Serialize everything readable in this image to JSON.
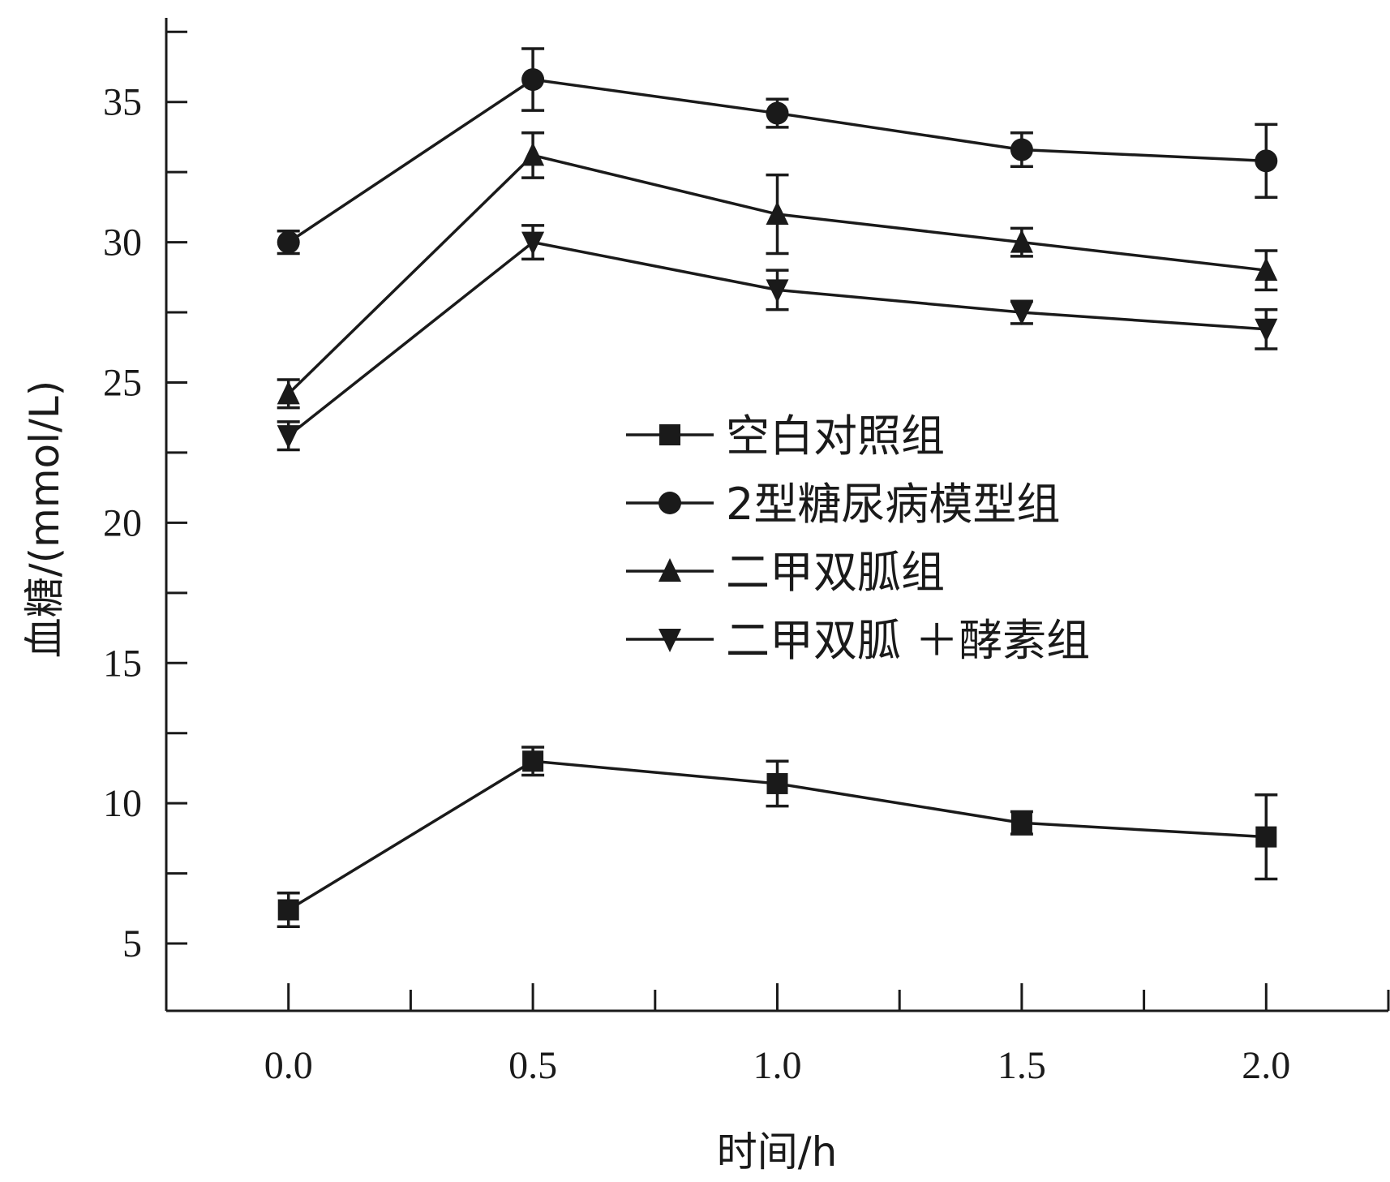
{
  "chart_data": {
    "type": "line",
    "title": "",
    "xlabel": "时间/h",
    "ylabel": "血糖/(mmol/L)",
    "x": [
      0.0,
      0.5,
      1.0,
      1.5,
      2.0
    ],
    "x_tick_labels": [
      "0.0",
      "0.5",
      "1.0",
      "1.5",
      "2.0"
    ],
    "y_ticks": [
      5,
      10,
      15,
      20,
      25,
      30,
      35
    ],
    "y_tick_labels": [
      "5",
      "10",
      "15",
      "20",
      "25",
      "30",
      "35"
    ],
    "xlim": [
      -0.25,
      2.25
    ],
    "ylim": [
      2.6,
      38.0
    ],
    "legend_position": "center-right",
    "series": [
      {
        "name": "空白对照组",
        "marker": "square",
        "values": [
          6.2,
          11.5,
          10.7,
          9.3,
          8.8
        ],
        "errors": [
          0.6,
          0.5,
          0.8,
          0.4,
          1.5
        ]
      },
      {
        "name": "2型糖尿病模型组",
        "marker": "circle",
        "values": [
          30.0,
          35.8,
          34.6,
          33.3,
          32.9
        ],
        "errors": [
          0.4,
          1.1,
          0.5,
          0.6,
          1.3
        ]
      },
      {
        "name": "二甲双胍组",
        "marker": "triangle-up",
        "values": [
          24.6,
          33.1,
          31.0,
          30.0,
          29.0
        ],
        "errors": [
          0.5,
          0.8,
          1.4,
          0.5,
          0.7
        ]
      },
      {
        "name": "二甲双胍 ＋酵素组",
        "marker": "triangle-down",
        "values": [
          23.1,
          30.0,
          28.3,
          27.5,
          26.9
        ],
        "errors": [
          0.5,
          0.6,
          0.7,
          0.4,
          0.7
        ]
      }
    ]
  }
}
